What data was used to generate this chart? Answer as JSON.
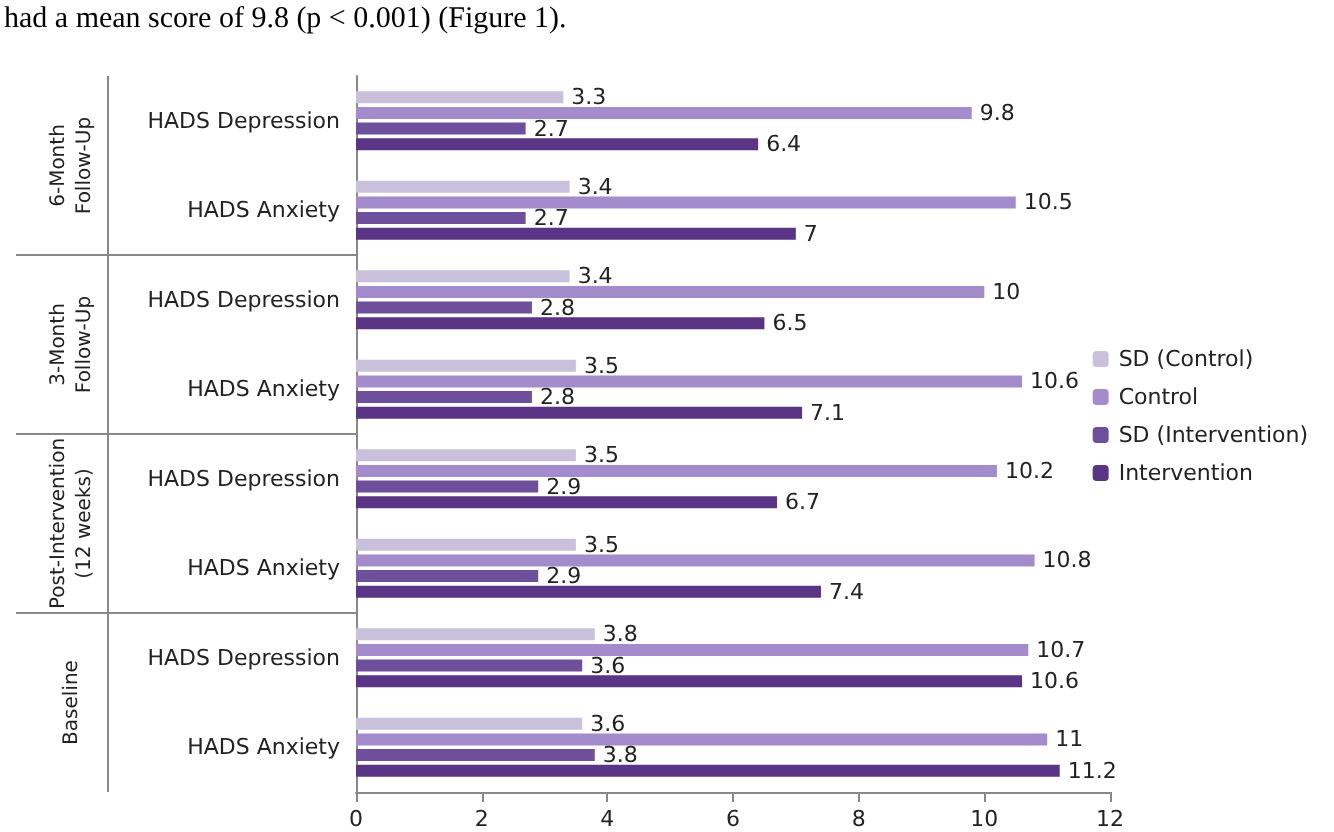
{
  "chart_data": {
    "type": "bar",
    "orientation": "horizontal",
    "categories": [
      "HADS Depression",
      "HADS Anxiety",
      "HADS Depression",
      "HADS Anxiety",
      "HADS Depression",
      "HADS Anxiety",
      "HADS Depression",
      "HADS Anxiety"
    ],
    "series": [
      {
        "name": "SD (Control)",
        "color": "#c9c1dc",
        "values": [
          3.3,
          3.4,
          3.4,
          3.5,
          3.5,
          3.5,
          3.8,
          3.6
        ]
      },
      {
        "name": "Control",
        "color": "#a48ccc",
        "values": [
          9.8,
          10.5,
          10,
          10.6,
          10.2,
          10.8,
          10.7,
          11
        ]
      },
      {
        "name": "SD (Intervention)",
        "color": "#6e4f9c",
        "values": [
          2.7,
          2.7,
          2.8,
          2.8,
          2.9,
          2.9,
          3.6,
          3.8
        ]
      },
      {
        "name": "Intervention",
        "color": "#5a3585",
        "values": [
          6.4,
          7,
          6.5,
          7.1,
          6.7,
          7.4,
          10.6,
          11.2
        ]
      }
    ],
    "xlim": [
      0,
      12
    ],
    "xticks": [
      0,
      2,
      4,
      6,
      8,
      10,
      12
    ],
    "data_labels": true,
    "grid": false,
    "legend": "right",
    "annotations": [
      "had a mean score of 9.8 (p < 0.001) (Figure 1).",
      "6-Month Follow-Up",
      "3-Month Follow-Up",
      "Post-Intervention (12 weeks)",
      "Baseline"
    ]
  }
}
